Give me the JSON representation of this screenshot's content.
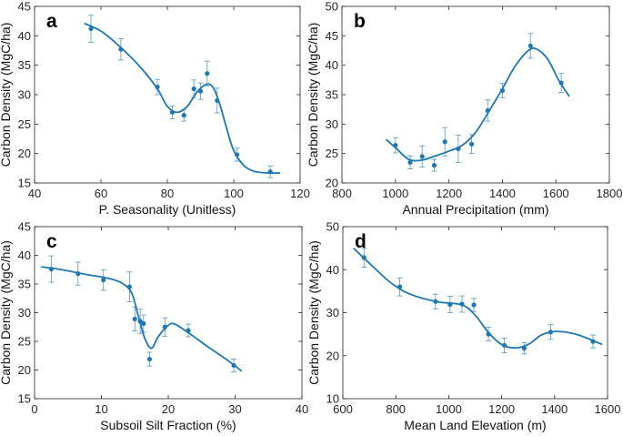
{
  "colors": {
    "series": "#1f77b4",
    "axis": "#262626"
  },
  "chart_data": [
    {
      "panel": "a",
      "type": "scatter",
      "xlabel": "P. Seasonality (Unitless)",
      "ylabel": "Carbon Density (MgC/ha)",
      "xlim": [
        40,
        120
      ],
      "ylim": [
        15,
        45
      ],
      "xticks": [
        40,
        60,
        80,
        100,
        120
      ],
      "yticks": [
        15,
        20,
        25,
        30,
        35,
        40,
        45
      ],
      "points": [
        [
          57,
          41.2,
          2.3
        ],
        [
          66,
          37.7,
          1.8
        ],
        [
          77,
          31.3,
          1.3
        ],
        [
          81.5,
          27.0,
          1.1
        ],
        [
          85,
          26.5,
          1.0
        ],
        [
          88,
          31.0,
          1.5
        ],
        [
          90,
          30.6,
          1.4
        ],
        [
          92,
          33.6,
          2.1
        ],
        [
          95,
          29.0,
          2.1
        ],
        [
          101,
          19.8,
          1.1
        ],
        [
          111,
          16.9,
          1.0
        ]
      ],
      "fit": [
        [
          55,
          42.1
        ],
        [
          60,
          40.8
        ],
        [
          66,
          38.0
        ],
        [
          72,
          34.6
        ],
        [
          77,
          31.0
        ],
        [
          80,
          28.0
        ],
        [
          83,
          27.0
        ],
        [
          86,
          28.0
        ],
        [
          89,
          30.5
        ],
        [
          92,
          31.8
        ],
        [
          94,
          31.0
        ],
        [
          96,
          28.0
        ],
        [
          98,
          24.0
        ],
        [
          100,
          20.5
        ],
        [
          103,
          18.0
        ],
        [
          106,
          17.0
        ],
        [
          110,
          16.7
        ],
        [
          114,
          16.7
        ]
      ]
    },
    {
      "panel": "b",
      "type": "scatter",
      "xlabel": "Annual Precipitation (mm)",
      "ylabel": "Carbon Density (MgC/ha)",
      "xlim": [
        800,
        1800
      ],
      "ylim": [
        20,
        50
      ],
      "xticks": [
        800,
        1000,
        1200,
        1400,
        1600,
        1800
      ],
      "yticks": [
        20,
        25,
        30,
        35,
        40,
        45,
        50
      ],
      "points": [
        [
          1000,
          26.4,
          1.3
        ],
        [
          1055,
          23.5,
          1.1
        ],
        [
          1100,
          24.5,
          1.8
        ],
        [
          1145,
          23.0,
          1.0
        ],
        [
          1185,
          27.0,
          2.4
        ],
        [
          1235,
          25.8,
          2.3
        ],
        [
          1285,
          26.6,
          1.6
        ],
        [
          1345,
          32.3,
          1.8
        ],
        [
          1400,
          35.7,
          1.2
        ],
        [
          1505,
          43.3,
          2.1
        ],
        [
          1620,
          37.0,
          1.6
        ]
      ],
      "fit": [
        [
          965,
          27.4
        ],
        [
          1000,
          26.0
        ],
        [
          1050,
          24.0
        ],
        [
          1100,
          23.9
        ],
        [
          1150,
          24.6
        ],
        [
          1200,
          25.4
        ],
        [
          1250,
          26.4
        ],
        [
          1300,
          28.6
        ],
        [
          1350,
          32.2
        ],
        [
          1400,
          36.0
        ],
        [
          1450,
          40.0
        ],
        [
          1500,
          42.6
        ],
        [
          1530,
          42.7
        ],
        [
          1570,
          41.0
        ],
        [
          1610,
          37.5
        ],
        [
          1650,
          34.7
        ]
      ]
    },
    {
      "panel": "c",
      "type": "scatter",
      "xlabel": "Subsoil Silt Fraction (%)",
      "ylabel": "Carbon Density (MgC/ha)",
      "xlim": [
        0,
        40
      ],
      "ylim": [
        15,
        45
      ],
      "xticks": [
        0,
        10,
        20,
        30,
        40
      ],
      "yticks": [
        15,
        20,
        25,
        30,
        35,
        40,
        45
      ],
      "points": [
        [
          2.5,
          37.6,
          2.3
        ],
        [
          6.5,
          36.8,
          2.0
        ],
        [
          10.3,
          35.7,
          1.8
        ],
        [
          14.2,
          34.5,
          2.6
        ],
        [
          15.0,
          28.9,
          2.1
        ],
        [
          15.8,
          28.5,
          2.1
        ],
        [
          16.3,
          28.1,
          1.5
        ],
        [
          17.2,
          21.9,
          1.2
        ],
        [
          19.5,
          27.5,
          1.6
        ],
        [
          23.0,
          26.9,
          1.1
        ],
        [
          29.8,
          20.8,
          1.1
        ]
      ],
      "fit": [
        [
          1,
          38.0
        ],
        [
          4,
          37.5
        ],
        [
          8,
          36.6
        ],
        [
          11,
          36.0
        ],
        [
          13,
          35.2
        ],
        [
          14.5,
          33.5
        ],
        [
          15.5,
          29.5
        ],
        [
          16.5,
          25.5
        ],
        [
          17.5,
          23.8
        ],
        [
          18.5,
          25.8
        ],
        [
          20,
          27.8
        ],
        [
          21,
          28.0
        ],
        [
          23,
          26.5
        ],
        [
          26,
          24.0
        ],
        [
          29,
          21.6
        ],
        [
          31,
          19.8
        ]
      ]
    },
    {
      "panel": "d",
      "type": "scatter",
      "xlabel": "Mean Land Elevation (m)",
      "ylabel": "Carbon Density (MgC/ha)",
      "xlim": [
        600,
        1600
      ],
      "ylim": [
        10,
        50
      ],
      "xticks": [
        600,
        800,
        1000,
        1200,
        1400,
        1600
      ],
      "yticks": [
        10,
        20,
        30,
        40,
        50
      ],
      "points": [
        [
          680,
          42.8,
          2.2
        ],
        [
          815,
          36.0,
          2.1
        ],
        [
          950,
          32.6,
          1.7
        ],
        [
          1005,
          31.9,
          1.9
        ],
        [
          1050,
          32.0,
          1.9
        ],
        [
          1095,
          31.8,
          1.5
        ],
        [
          1150,
          25.0,
          1.6
        ],
        [
          1210,
          22.4,
          1.7
        ],
        [
          1285,
          21.7,
          1.3
        ],
        [
          1385,
          25.5,
          1.7
        ],
        [
          1545,
          23.3,
          1.5
        ]
      ],
      "fit": [
        [
          640,
          45.0
        ],
        [
          700,
          41.5
        ],
        [
          780,
          37.0
        ],
        [
          850,
          34.4
        ],
        [
          950,
          32.6
        ],
        [
          1050,
          31.8
        ],
        [
          1100,
          29.4
        ],
        [
          1150,
          25.4
        ],
        [
          1200,
          22.6
        ],
        [
          1250,
          21.8
        ],
        [
          1300,
          22.6
        ],
        [
          1350,
          24.8
        ],
        [
          1400,
          25.6
        ],
        [
          1450,
          25.4
        ],
        [
          1500,
          24.6
        ],
        [
          1580,
          22.6
        ]
      ]
    }
  ]
}
